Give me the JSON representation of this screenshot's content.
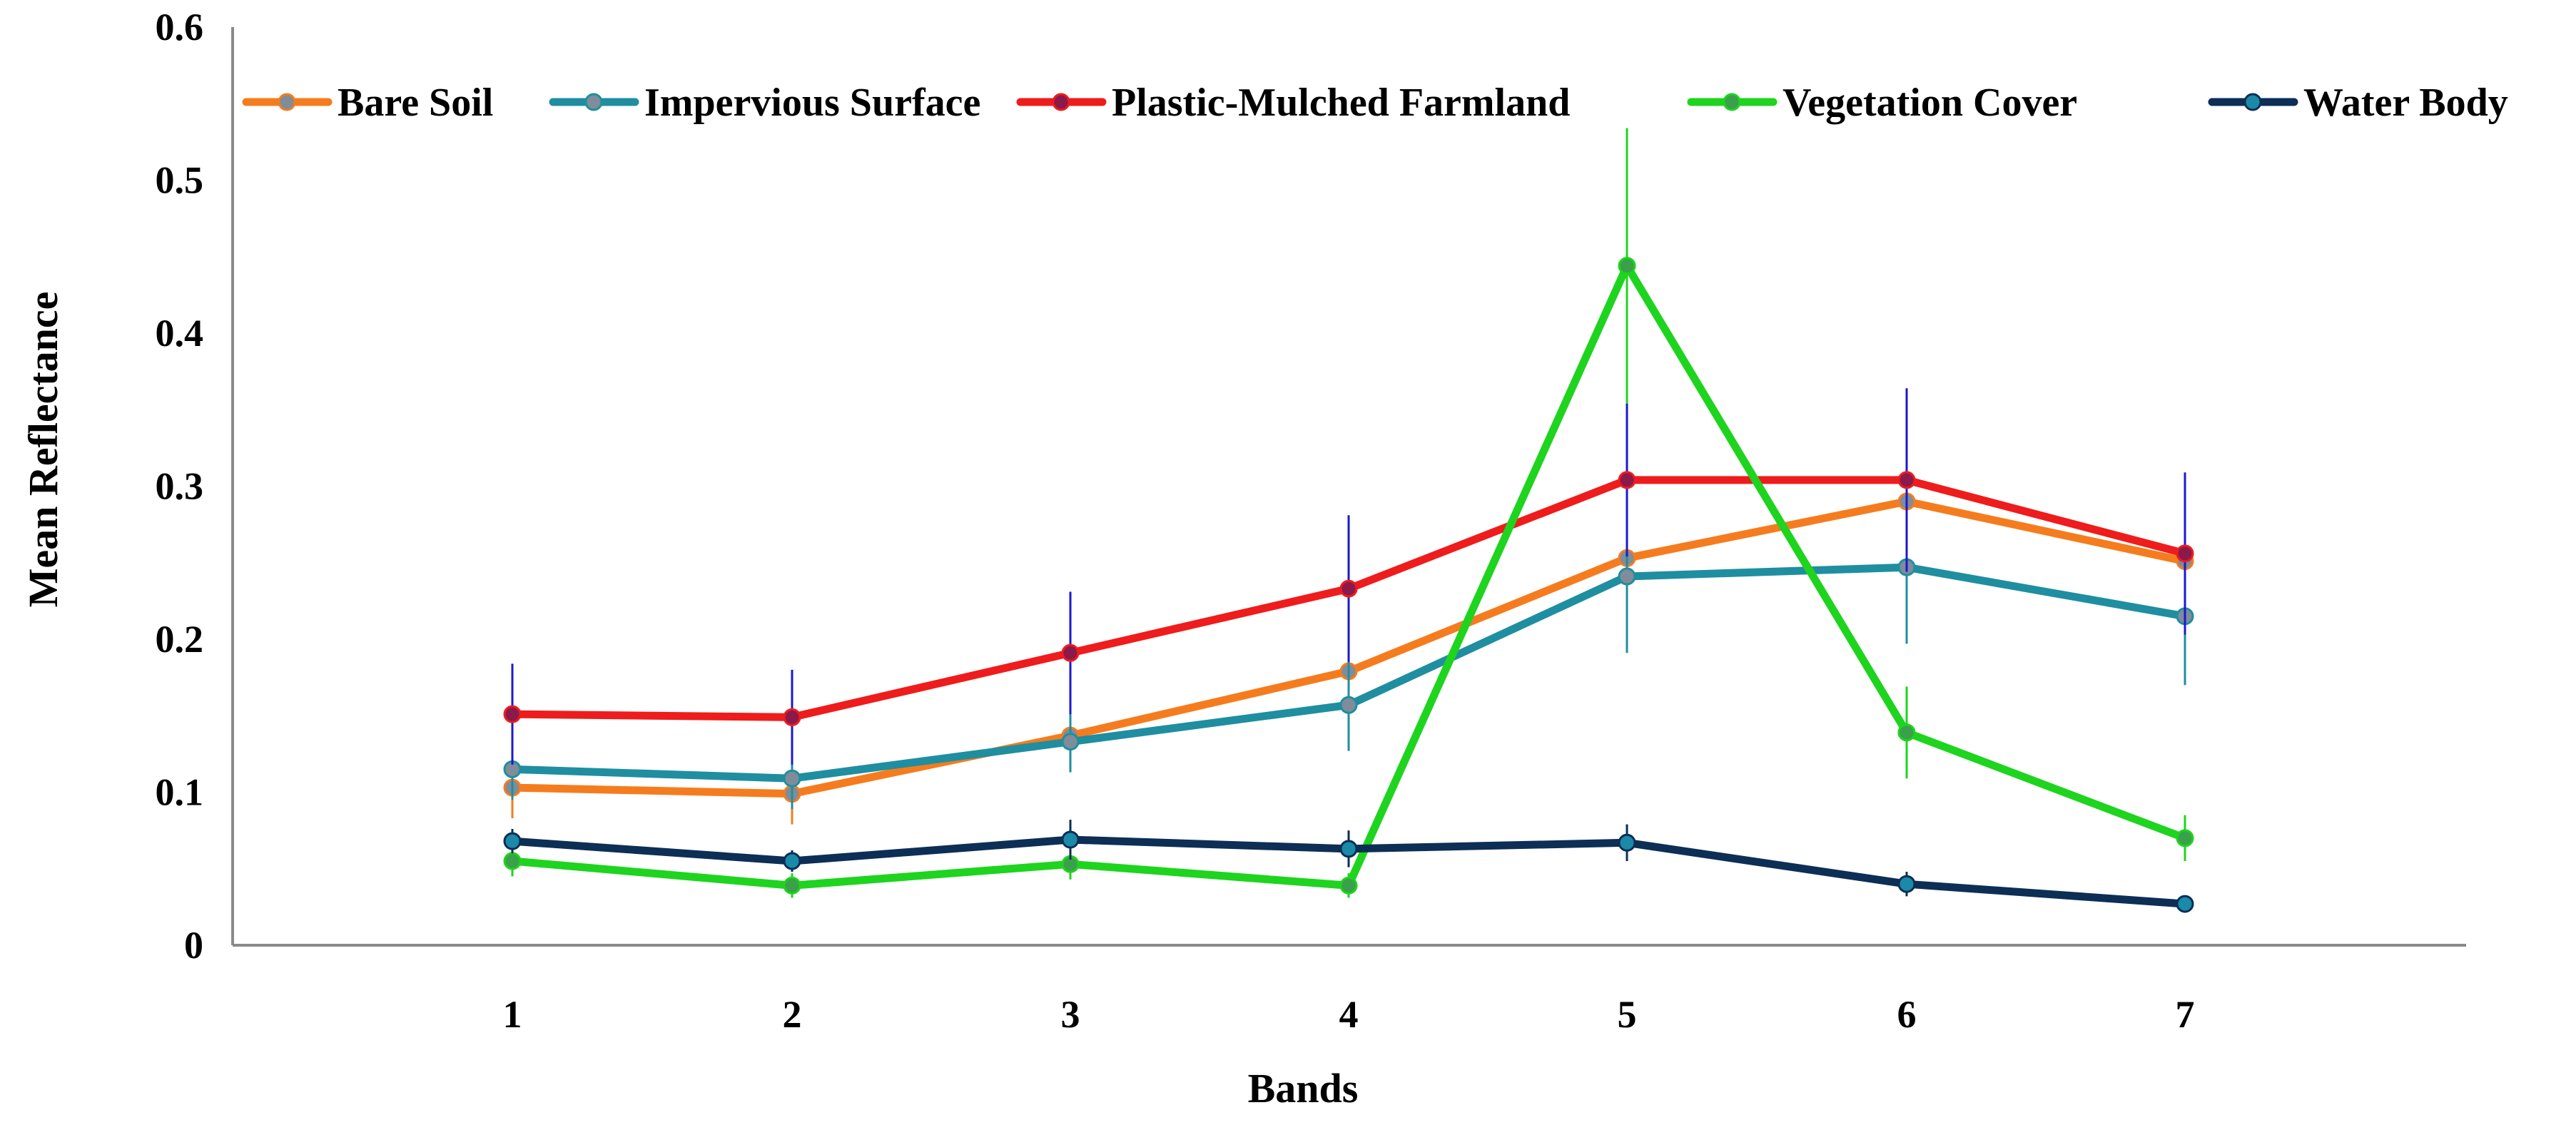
{
  "chart_data": {
    "type": "line",
    "categories": [
      "1",
      "2",
      "3",
      "4",
      "5",
      "6",
      "7"
    ],
    "xlabel": "Bands",
    "ylabel": "Mean Reflectance",
    "ylim": [
      0,
      0.6
    ],
    "yticks": [
      "0",
      "0.1",
      "0.2",
      "0.3",
      "0.4",
      "0.5",
      "0.6"
    ],
    "grid": false,
    "legend_position": "top",
    "series": [
      {
        "name": "Bare Soil",
        "color": "#f57c1e",
        "marker_color": "#7f8c9a",
        "values": [
          0.103,
          0.099,
          0.137,
          0.179,
          0.253,
          0.29,
          0.251
        ],
        "errors": [
          0.02,
          0.02,
          0.02,
          0.03,
          0.04,
          0.04,
          0.04
        ]
      },
      {
        "name": "Impervious Surface",
        "color": "#1f8ea0",
        "marker_color": "#7f8c9a",
        "values": [
          0.115,
          0.109,
          0.133,
          0.157,
          0.241,
          0.247,
          0.215
        ],
        "errors": [
          0.02,
          0.02,
          0.02,
          0.03,
          0.05,
          0.05,
          0.045
        ]
      },
      {
        "name": "Plastic-Mulched Farmland",
        "color": "#ee1c1c",
        "marker_color": "#8b1a4a",
        "values": [
          0.151,
          0.149,
          0.191,
          0.233,
          0.304,
          0.304,
          0.256
        ],
        "errors": [
          0.033,
          0.031,
          0.04,
          0.048,
          0.05,
          0.06,
          0.053
        ],
        "error_color": "#1a1acc"
      },
      {
        "name": "Vegetation Cover",
        "color": "#1ed41e",
        "marker_color": "#3aa04a",
        "values": [
          0.055,
          0.039,
          0.053,
          0.039,
          0.444,
          0.139,
          0.07
        ],
        "errors": [
          0.01,
          0.008,
          0.01,
          0.008,
          0.09,
          0.03,
          0.015
        ]
      },
      {
        "name": "Water Body",
        "color": "#0d2e55",
        "marker_color": "#1a8aa8",
        "values": [
          0.068,
          0.055,
          0.069,
          0.063,
          0.067,
          0.04,
          0.027
        ],
        "errors": [
          0.008,
          0.007,
          0.013,
          0.012,
          0.012,
          0.008,
          0.005
        ]
      }
    ]
  }
}
